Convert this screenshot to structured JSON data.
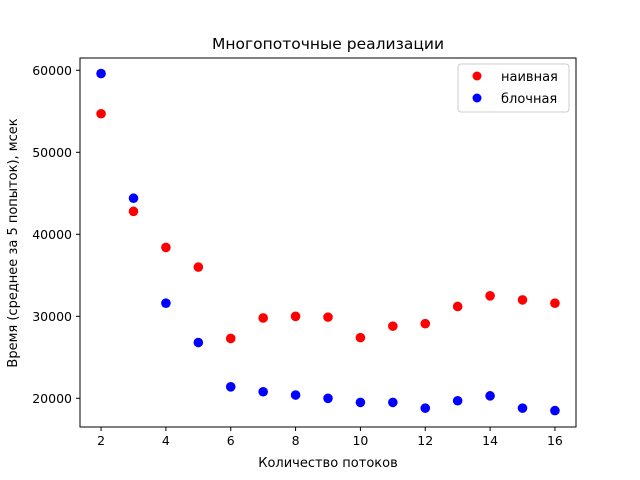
{
  "chart_data": {
    "type": "scatter",
    "title": "Многопоточные реализации",
    "xlabel": "Количество потоков",
    "ylabel": "Время (среднее за 5 попыток), мсек",
    "xlim": [
      1.35,
      16.65
    ],
    "ylim": [
      16500,
      61500
    ],
    "xticks": [
      2,
      4,
      6,
      8,
      10,
      12,
      14,
      16
    ],
    "yticks": [
      20000,
      30000,
      40000,
      50000,
      60000
    ],
    "grid": false,
    "legend_position": "top-right",
    "series": [
      {
        "name": "наивная",
        "color": "#ff0000",
        "x": [
          2,
          3,
          4,
          5,
          6,
          7,
          8,
          9,
          10,
          11,
          12,
          13,
          14,
          15,
          16
        ],
        "y": [
          54700,
          42800,
          38400,
          36000,
          27300,
          29800,
          30000,
          29900,
          27400,
          28800,
          29100,
          31200,
          32500,
          32000,
          31600
        ]
      },
      {
        "name": "блочная",
        "color": "#0000ff",
        "x": [
          2,
          3,
          4,
          5,
          6,
          7,
          8,
          9,
          10,
          11,
          12,
          13,
          14,
          15,
          16
        ],
        "y": [
          59600,
          44400,
          31600,
          26800,
          21400,
          20800,
          20400,
          20000,
          19500,
          19500,
          18800,
          19700,
          20300,
          18800,
          18500
        ]
      }
    ]
  }
}
